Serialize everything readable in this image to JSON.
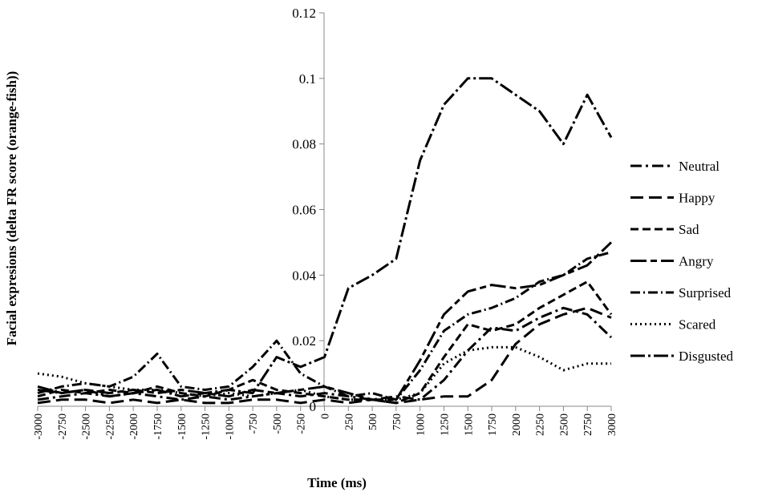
{
  "chart_data": {
    "type": "line",
    "title": "",
    "xlabel": "Time (ms)",
    "ylabel": "Facial expresions (delta  FR score (orange-fish))",
    "xlim": [
      -3000,
      3000
    ],
    "ylim": [
      0,
      0.12
    ],
    "x_ticks": [
      -3000,
      -2750,
      -2500,
      -2250,
      -2000,
      -1750,
      -1500,
      -1250,
      -1000,
      -750,
      -500,
      -250,
      0,
      250,
      500,
      750,
      1000,
      1250,
      1500,
      1750,
      2000,
      2250,
      2500,
      2750,
      3000
    ],
    "x_tick_labels": [
      "-3000",
      "-2750",
      "-2500",
      "-2250",
      "-2000",
      "-1750",
      "-1500",
      "-1250",
      "-1000",
      "-750",
      "-500",
      "-250",
      "0",
      "250",
      "500",
      "750",
      "1000",
      "1250",
      "1500",
      "1750",
      "2000",
      "2250",
      "2500",
      "2750",
      "3000"
    ],
    "y_ticks": [
      0,
      0.02,
      0.04,
      0.06,
      0.08,
      0.1,
      0.12
    ],
    "y_tick_labels": [
      "0",
      "0.02",
      "0.04",
      "0.06",
      "0.08",
      "0.1",
      "0.12"
    ],
    "grid": false,
    "legend_position": "right",
    "x": [
      -3000,
      -2750,
      -2500,
      -2250,
      -2000,
      -1750,
      -1500,
      -1250,
      -1000,
      -750,
      -500,
      -250,
      0,
      250,
      500,
      750,
      1000,
      1250,
      1500,
      1750,
      2000,
      2250,
      2500,
      2750,
      3000
    ],
    "series": [
      {
        "name": "Neutral",
        "color": "#000000",
        "dash": "14,5,3,5",
        "values": [
          0.002,
          0.003,
          0.004,
          0.003,
          0.004,
          0.003,
          0.002,
          0.003,
          0.002,
          0.003,
          0.004,
          0.003,
          0.004,
          0.003,
          0.002,
          0.003,
          0.002,
          0.008,
          0.017,
          0.024,
          0.023,
          0.027,
          0.03,
          0.028,
          0.021
        ]
      },
      {
        "name": "Happy",
        "color": "#000000",
        "dash": "16,7",
        "values": [
          0.001,
          0.002,
          0.002,
          0.001,
          0.002,
          0.001,
          0.002,
          0.001,
          0.001,
          0.002,
          0.002,
          0.001,
          0.002,
          0.001,
          0.002,
          0.001,
          0.002,
          0.003,
          0.003,
          0.008,
          0.019,
          0.025,
          0.028,
          0.03,
          0.027
        ]
      },
      {
        "name": "Sad",
        "color": "#000000",
        "dash": "10,5",
        "values": [
          0.003,
          0.005,
          0.004,
          0.005,
          0.004,
          0.006,
          0.004,
          0.003,
          0.005,
          0.008,
          0.005,
          0.004,
          0.003,
          0.002,
          0.002,
          0.001,
          0.004,
          0.015,
          0.025,
          0.023,
          0.025,
          0.03,
          0.034,
          0.038,
          0.028
        ]
      },
      {
        "name": "Angry",
        "color": "#000000",
        "dash": "20,5,8,5",
        "values": [
          0.006,
          0.004,
          0.005,
          0.004,
          0.005,
          0.004,
          0.005,
          0.004,
          0.003,
          0.005,
          0.004,
          0.005,
          0.006,
          0.004,
          0.002,
          0.002,
          0.014,
          0.028,
          0.035,
          0.037,
          0.036,
          0.037,
          0.04,
          0.043,
          0.05
        ]
      },
      {
        "name": "Surprised",
        "color": "#000000",
        "dash": "12,4,2,4",
        "values": [
          0.004,
          0.006,
          0.007,
          0.006,
          0.009,
          0.016,
          0.006,
          0.005,
          0.006,
          0.012,
          0.02,
          0.01,
          0.006,
          0.003,
          0.004,
          0.002,
          0.011,
          0.023,
          0.028,
          0.03,
          0.033,
          0.038,
          0.04,
          0.045,
          0.047
        ]
      },
      {
        "name": "Scared",
        "color": "#000000",
        "dash": "2,4",
        "values": [
          0.01,
          0.009,
          0.007,
          0.006,
          0.005,
          0.005,
          0.004,
          0.003,
          0.004,
          0.003,
          0.004,
          0.005,
          0.003,
          0.002,
          0.002,
          0.002,
          0.004,
          0.013,
          0.017,
          0.018,
          0.018,
          0.015,
          0.011,
          0.013,
          0.013
        ]
      },
      {
        "name": "Disgusted",
        "color": "#000000",
        "dash": "18,4,3,4",
        "values": [
          0.005,
          0.004,
          0.005,
          0.003,
          0.004,
          0.005,
          0.003,
          0.004,
          0.005,
          0.004,
          0.015,
          0.012,
          0.015,
          0.036,
          0.04,
          0.045,
          0.075,
          0.092,
          0.1,
          0.1,
          0.095,
          0.09,
          0.08,
          0.095,
          0.082
        ]
      }
    ]
  }
}
